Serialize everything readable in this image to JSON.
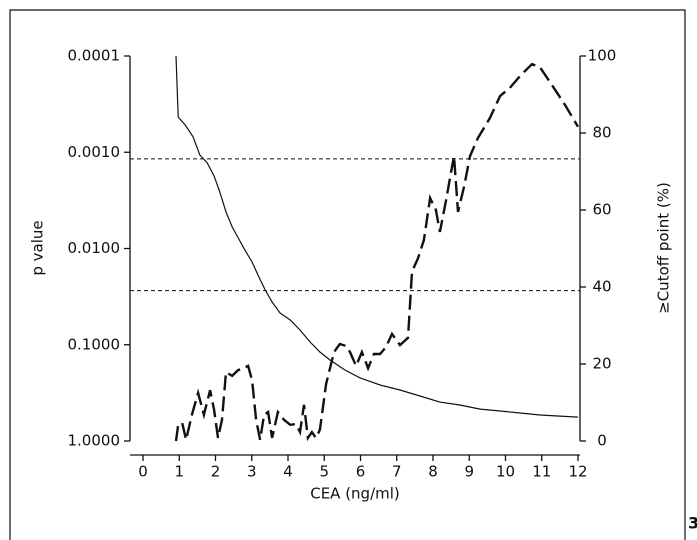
{
  "chart_data": {
    "type": "line",
    "x_label": "CEA (ng/ml)",
    "y_label": "p value",
    "y2_label": "≥Cutoff point (%)",
    "panel_label": "3",
    "xlim": [
      0,
      12
    ],
    "xticks": [
      0,
      1,
      2,
      3,
      4,
      5,
      6,
      7,
      8,
      9,
      10,
      11,
      12
    ],
    "ylim": [
      0.0001,
      1
    ],
    "y_log": true,
    "yticks": [
      {
        "value": 0.0001,
        "label": "0.0001"
      },
      {
        "value": 0.001,
        "label": "0.0010"
      },
      {
        "value": 0.01,
        "label": "0.0100"
      },
      {
        "value": 0.1,
        "label": "0.1000"
      },
      {
        "value": 1,
        "label": "1.0000"
      }
    ],
    "y2lim": [
      0,
      100
    ],
    "y2ticks": [
      0,
      20,
      40,
      60,
      80,
      100
    ],
    "hlines": [
      0.00117,
      0.0274
    ],
    "series": [
      {
        "color": "#111111",
        "line_style": "solid",
        "x": [
          0.91,
          0.97,
          1.16,
          1.38,
          1.57,
          1.77,
          1.96,
          2.12,
          2.29,
          2.46,
          2.63,
          2.81,
          3.01,
          3.17,
          3.37,
          3.56,
          3.78,
          4.06,
          4.33,
          4.61,
          4.88,
          5.16,
          5.57,
          5.99,
          6.54,
          7.09,
          7.64,
          8.19,
          8.74,
          9.3,
          9.85,
          10.4,
          10.95,
          12
        ],
        "values": [
          0.0001,
          0.00043,
          0.00052,
          0.00069,
          0.00107,
          0.00129,
          0.00177,
          0.00259,
          0.00418,
          0.00598,
          0.00778,
          0.0104,
          0.0138,
          0.0188,
          0.027,
          0.036,
          0.0468,
          0.0553,
          0.0703,
          0.0936,
          0.119,
          0.144,
          0.183,
          0.221,
          0.262,
          0.295,
          0.341,
          0.394,
          0.423,
          0.466,
          0.488,
          0.512,
          0.537,
          0.564
        ]
      },
      {
        "color": "#111111",
        "line_style": "dashed",
        "axis": "y2",
        "x": [
          0.91,
          0.97,
          1.08,
          1.19,
          1.35,
          1.52,
          1.68,
          1.85,
          1.96,
          2.07,
          2.18,
          2.29,
          2.46,
          2.62,
          2.79,
          2.9,
          3.01,
          3.12,
          3.23,
          3.34,
          3.45,
          3.56,
          3.72,
          3.89,
          4.06,
          4.22,
          4.33,
          4.44,
          4.55,
          4.66,
          4.77,
          4.88,
          5.05,
          5.27,
          5.43,
          5.6,
          5.71,
          5.88,
          6.04,
          6.21,
          6.37,
          6.54,
          6.7,
          6.87,
          7.09,
          7.31,
          7.42,
          7.59,
          7.75,
          7.92,
          8.08,
          8.19,
          8.36,
          8.47,
          8.58,
          8.69,
          8.86,
          9.02,
          9.24,
          9.57,
          9.85,
          10.12,
          10.4,
          10.73,
          10.95,
          11.23,
          11.64,
          12
        ],
        "values": [
          0,
          4.2,
          4.7,
          0.3,
          6.8,
          12.5,
          6.8,
          13.2,
          8.1,
          0.8,
          5.5,
          17.9,
          16.9,
          18.4,
          19.0,
          19.5,
          15.8,
          5.5,
          0.3,
          6.8,
          7.5,
          0.8,
          7.5,
          5.5,
          4.2,
          4.4,
          2.3,
          9.4,
          0.8,
          2.3,
          0.8,
          2.9,
          14.8,
          23.1,
          25.2,
          24.7,
          23.1,
          19.5,
          23.1,
          18.9,
          22.6,
          22.6,
          24.4,
          27.8,
          24.9,
          26.8,
          44.0,
          47.5,
          52.2,
          63.1,
          60.0,
          54.3,
          62.6,
          68.3,
          74.0,
          59.5,
          66.2,
          74.0,
          78.7,
          83.9,
          89.6,
          91.7,
          94.8,
          97.9,
          97.1,
          93.2,
          87.3,
          81.6
        ]
      }
    ]
  }
}
